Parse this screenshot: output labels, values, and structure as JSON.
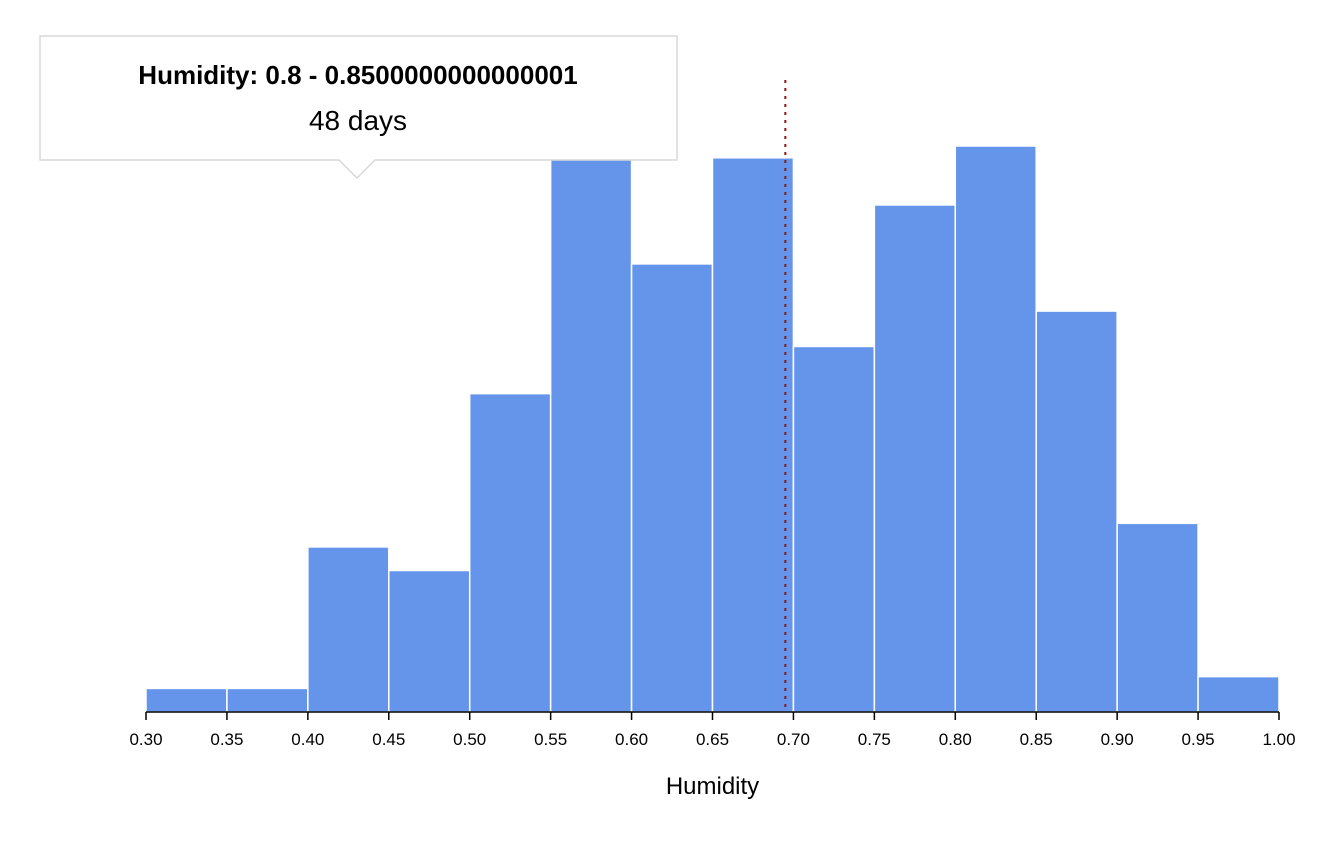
{
  "chart_data": {
    "type": "bar",
    "xlabel": "Humidity",
    "ylabel": "",
    "xlim": [
      0.3,
      1.0
    ],
    "ylim": [
      0,
      48
    ],
    "bin_edges": [
      0.3,
      0.35,
      0.4,
      0.45,
      0.5,
      0.55,
      0.6,
      0.65,
      0.7,
      0.75,
      0.8,
      0.85,
      0.9,
      0.95,
      1.0
    ],
    "values": [
      2,
      2,
      14,
      12,
      27,
      47,
      38,
      47,
      31,
      43,
      48,
      34,
      16,
      3
    ],
    "xticks": [
      "0.30",
      "0.35",
      "0.40",
      "0.45",
      "0.50",
      "0.55",
      "0.60",
      "0.65",
      "0.70",
      "0.75",
      "0.80",
      "0.85",
      "0.90",
      "0.95",
      "1.00"
    ],
    "reference_line": {
      "x": 0.695,
      "style": "dotted",
      "color": "#8b1a1a"
    },
    "bar_color": "#6495ea",
    "grid": false,
    "tooltip": {
      "title": "Humidity: 0.8 - 0.8500000000000001",
      "value": "48 days"
    }
  }
}
